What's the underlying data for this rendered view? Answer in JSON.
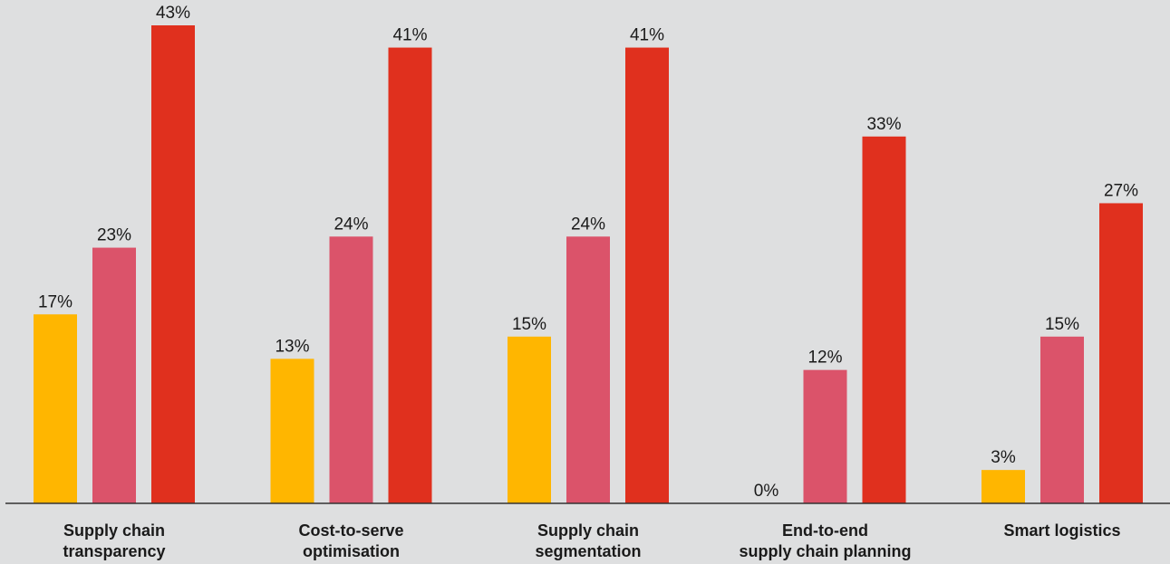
{
  "chart_data": {
    "type": "bar",
    "categories": [
      [
        "Supply chain",
        "transparency"
      ],
      [
        "Cost-to-serve",
        "optimisation"
      ],
      [
        "Supply chain",
        "segmentation"
      ],
      [
        "End-to-end",
        "supply chain planning"
      ],
      [
        "Smart logistics"
      ]
    ],
    "series": [
      {
        "values": [
          17,
          13,
          15,
          0,
          3
        ],
        "color": "#ffb600"
      },
      {
        "values": [
          23,
          24,
          24,
          12,
          15
        ],
        "color": "#db536a"
      },
      {
        "values": [
          43,
          41,
          41,
          33,
          27
        ],
        "color": "#e0301e"
      }
    ],
    "value_suffix": "%",
    "ylim": [
      0,
      43
    ],
    "grid": false,
    "legend": "none",
    "title": "",
    "xlabel": "",
    "ylabel": ""
  }
}
